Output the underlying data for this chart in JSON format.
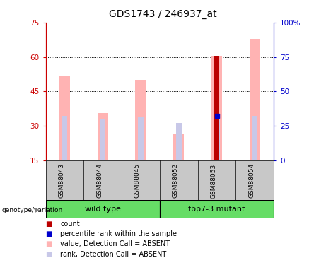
{
  "title": "GDS1743 / 246937_at",
  "samples": [
    "GSM88043",
    "GSM88044",
    "GSM88045",
    "GSM88052",
    "GSM88053",
    "GSM88054"
  ],
  "value_bars": [
    52.0,
    35.5,
    50.0,
    26.5,
    60.5,
    68.0
  ],
  "rank_bars": [
    32.0,
    30.0,
    31.0,
    27.0,
    32.5,
    32.0
  ],
  "count_bar_val": 60.5,
  "count_bar_idx": 4,
  "percentile_rank_val": 32.5,
  "percentile_rank_idx": 4,
  "ylim_left": [
    15,
    75
  ],
  "ylim_right": [
    0,
    100
  ],
  "yticks_left": [
    15,
    30,
    45,
    60,
    75
  ],
  "yticks_right": [
    0,
    25,
    50,
    75,
    100
  ],
  "ytick_labels_right": [
    "0",
    "25",
    "50",
    "75",
    "100%"
  ],
  "grid_lines": [
    30,
    45,
    60
  ],
  "groups": [
    {
      "label": "wild type",
      "indices": [
        0,
        1,
        2
      ]
    },
    {
      "label": "fbp7-3 mutant",
      "indices": [
        3,
        4,
        5
      ]
    }
  ],
  "group_label": "genotype/variation",
  "color_value": "#ffb3b3",
  "color_rank": "#c8c8e8",
  "color_count": "#bb0000",
  "color_percentile": "#0000cc",
  "background_label": "#c8c8c8",
  "background_group": "#66dd66",
  "left_ycolor": "#cc0000",
  "right_ycolor": "#0000cc",
  "title_fontsize": 10,
  "legend_items": [
    {
      "color": "#bb0000",
      "label": "count"
    },
    {
      "color": "#0000cc",
      "label": "percentile rank within the sample"
    },
    {
      "color": "#ffb3b3",
      "label": "value, Detection Call = ABSENT"
    },
    {
      "color": "#c8c8e8",
      "label": "rank, Detection Call = ABSENT"
    }
  ]
}
